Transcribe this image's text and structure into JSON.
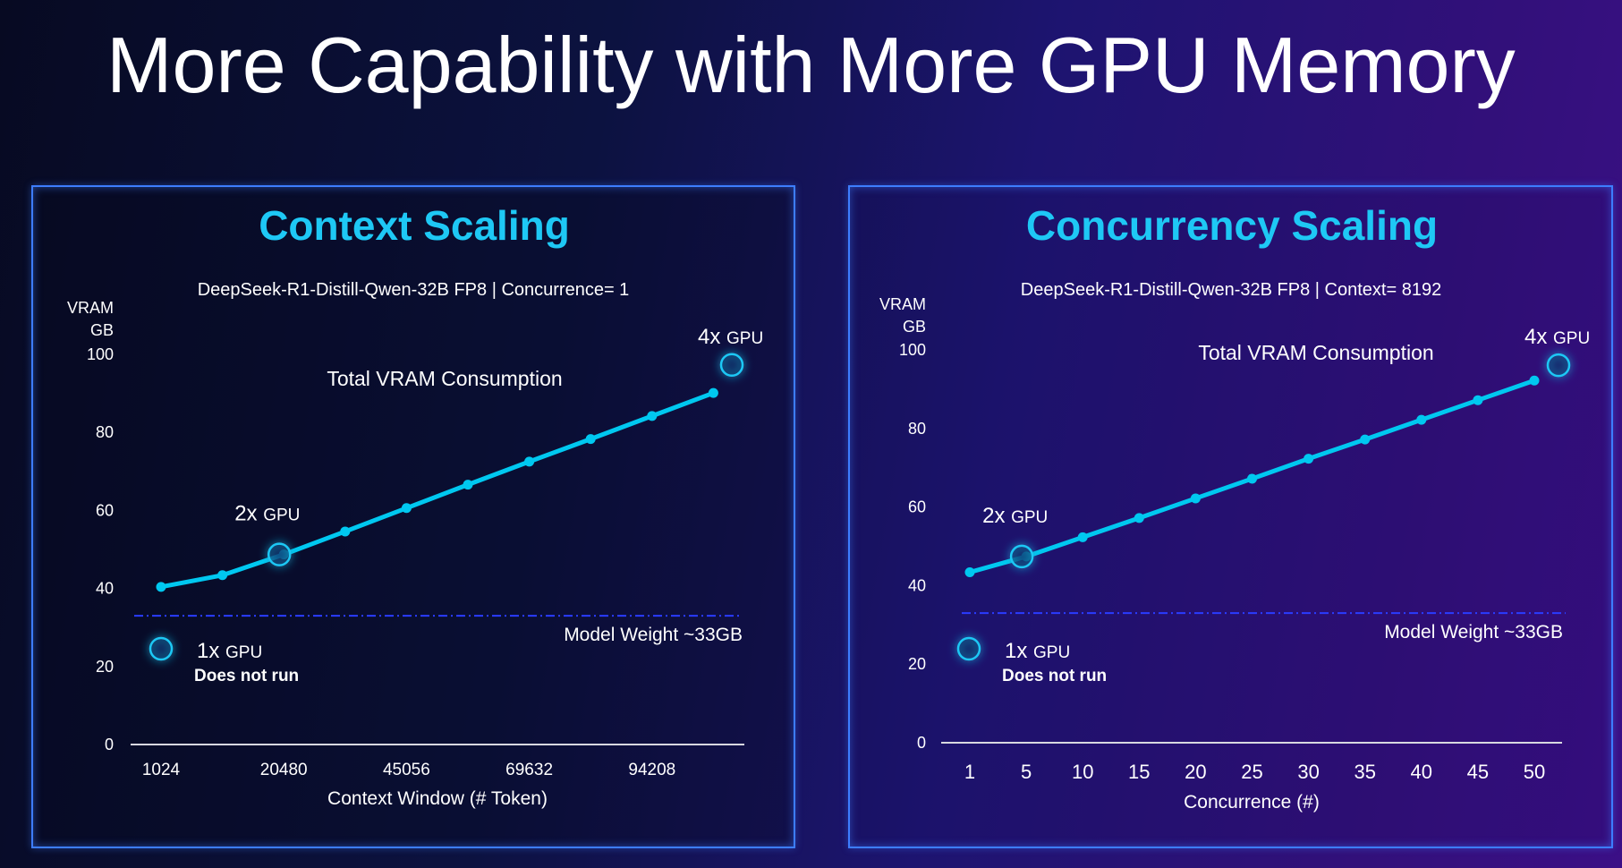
{
  "page": {
    "title": "More Capability with More GPU Memory"
  },
  "colors": {
    "line": "#00c8f0",
    "title_accent": "#1ec8f5",
    "panel_border": "#3d7dff",
    "model_weight_line": "#2a3cff"
  },
  "chart_data": [
    {
      "type": "line",
      "title": "Context Scaling",
      "subtitle": "DeepSeek-R1-Distill-Qwen-32B FP8  |  Concurrence= 1",
      "series_label": "Total VRAM Consumption",
      "ylabel_line1": "VRAM",
      "ylabel_line2": "GB",
      "xlabel": "Context Window (# Token)",
      "ylim": [
        0,
        100
      ],
      "yticks": [
        "0",
        "20",
        "40",
        "60",
        "80",
        "100"
      ],
      "ytick_values": [
        0,
        20,
        40,
        60,
        80,
        100
      ],
      "categories": [
        "1024",
        "",
        "20480",
        "",
        "45056",
        "",
        "69632",
        "",
        "94208",
        ""
      ],
      "values": [
        40.4,
        43.4,
        48.7,
        54.6,
        60.6,
        66.6,
        72.5,
        78.3,
        84.2,
        90.1
      ],
      "model_weight": {
        "value": 33,
        "label": "Model Weight ~33GB"
      },
      "annotations": {
        "gpu1": {
          "prefix": "1x",
          "suffix": "GPU",
          "note": "Does not run"
        },
        "gpu2": {
          "prefix": "2x",
          "suffix": "GPU",
          "index": 2
        },
        "gpu4": {
          "prefix": "4x",
          "suffix": "GPU",
          "value": 97.3
        }
      },
      "grid": false
    },
    {
      "type": "line",
      "title": "Concurrency Scaling",
      "subtitle": "DeepSeek-R1-Distill-Qwen-32B FP8  |  Context= 8192",
      "series_label": "Total VRAM Consumption",
      "ylabel_line1": "VRAM",
      "ylabel_line2": "GB",
      "xlabel": "Concurrence (#)",
      "ylim": [
        0,
        100
      ],
      "yticks": [
        "0",
        "20",
        "40",
        "60",
        "80",
        "100"
      ],
      "ytick_values": [
        0,
        20,
        40,
        60,
        80,
        100
      ],
      "categories": [
        "1",
        "5",
        "10",
        "15",
        "20",
        "25",
        "30",
        "35",
        "40",
        "45",
        "50"
      ],
      "values": [
        43.4,
        47.4,
        52.3,
        57.2,
        62.2,
        67.2,
        72.3,
        77.2,
        82.2,
        87.2,
        92.2
      ],
      "model_weight": {
        "value": 33,
        "label": "Model Weight ~33GB"
      },
      "annotations": {
        "gpu1": {
          "prefix": "1x",
          "suffix": "GPU",
          "note": "Does not run"
        },
        "gpu2": {
          "prefix": "2x",
          "suffix": "GPU",
          "index": 1
        },
        "gpu4": {
          "prefix": "4x",
          "suffix": "GPU",
          "value": 96.1
        }
      },
      "grid": false
    }
  ]
}
